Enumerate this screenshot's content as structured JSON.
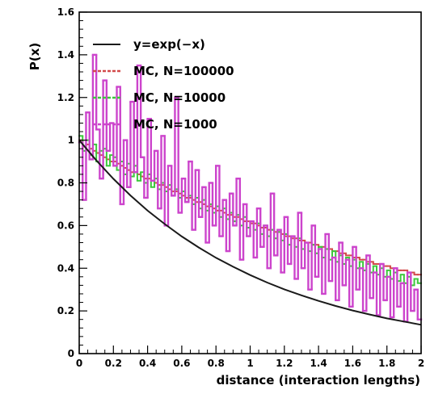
{
  "chart_data": {
    "type": "line",
    "title": "",
    "xlabel": "distance (interaction lengths)",
    "ylabel": "P(x)",
    "xlim": [
      0,
      2
    ],
    "ylim": [
      0,
      1.6
    ],
    "x_ticks": [
      0,
      0.2,
      0.4,
      0.6,
      0.8,
      1,
      1.2,
      1.4,
      1.6,
      1.8,
      2
    ],
    "x_tick_labels": [
      "0",
      "0.2",
      "0.4",
      "0.6",
      "0.8",
      "1",
      "1.2",
      "1.4",
      "1.6",
      "1.8",
      "2"
    ],
    "y_ticks": [
      0,
      0.2,
      0.4,
      0.6,
      0.8,
      1,
      1.2,
      1.4,
      1.6
    ],
    "y_tick_labels": [
      "0",
      "0.2",
      "0.4",
      "0.6",
      "0.8",
      "1",
      "1.2",
      "1.4",
      "1.6"
    ],
    "grid": false,
    "legend_position": "top-left",
    "bins": 100,
    "series": [
      {
        "name": "y=exp(−x)",
        "kind": "function",
        "color": "#1a1a1a",
        "x": [
          0,
          0.1,
          0.2,
          0.3,
          0.4,
          0.5,
          0.6,
          0.7,
          0.8,
          0.9,
          1.0,
          1.1,
          1.2,
          1.3,
          1.4,
          1.5,
          1.6,
          1.7,
          1.8,
          1.9,
          2.0
        ],
        "values": [
          1.0,
          0.905,
          0.819,
          0.741,
          0.67,
          0.607,
          0.549,
          0.497,
          0.449,
          0.407,
          0.368,
          0.333,
          0.301,
          0.273,
          0.247,
          0.223,
          0.202,
          0.183,
          0.165,
          0.15,
          0.135
        ]
      },
      {
        "name": "MC, N=100000",
        "kind": "histogram",
        "color": "#d24a4a",
        "values": [
          1.0,
          0.97,
          0.98,
          0.96,
          0.95,
          0.94,
          0.93,
          0.92,
          0.91,
          0.9,
          0.9,
          0.89,
          0.88,
          0.87,
          0.86,
          0.85,
          0.85,
          0.84,
          0.83,
          0.82,
          0.82,
          0.81,
          0.8,
          0.79,
          0.79,
          0.78,
          0.77,
          0.76,
          0.76,
          0.75,
          0.74,
          0.73,
          0.73,
          0.72,
          0.71,
          0.71,
          0.7,
          0.69,
          0.69,
          0.68,
          0.67,
          0.67,
          0.66,
          0.65,
          0.65,
          0.64,
          0.64,
          0.63,
          0.62,
          0.62,
          0.61,
          0.61,
          0.6,
          0.59,
          0.59,
          0.58,
          0.58,
          0.57,
          0.57,
          0.56,
          0.55,
          0.55,
          0.54,
          0.54,
          0.53,
          0.53,
          0.52,
          0.52,
          0.51,
          0.51,
          0.5,
          0.5,
          0.49,
          0.49,
          0.48,
          0.48,
          0.47,
          0.47,
          0.46,
          0.46,
          0.45,
          0.45,
          0.44,
          0.44,
          0.43,
          0.43,
          0.42,
          0.42,
          0.42,
          0.41,
          0.41,
          0.4,
          0.4,
          0.39,
          0.39,
          0.39,
          0.38,
          0.38,
          0.37,
          0.37
        ]
      },
      {
        "name": "MC, N=10000",
        "kind": "histogram",
        "color": "#3cc83c",
        "values": [
          1.02,
          0.95,
          1.0,
          0.93,
          0.98,
          0.9,
          0.95,
          0.96,
          0.88,
          0.93,
          0.92,
          0.86,
          0.9,
          0.84,
          0.89,
          0.83,
          0.88,
          0.81,
          0.85,
          0.8,
          0.84,
          0.78,
          0.82,
          0.77,
          0.8,
          0.76,
          0.79,
          0.74,
          0.77,
          0.73,
          0.76,
          0.71,
          0.74,
          0.7,
          0.73,
          0.68,
          0.72,
          0.67,
          0.7,
          0.66,
          0.69,
          0.64,
          0.68,
          0.63,
          0.66,
          0.62,
          0.65,
          0.6,
          0.64,
          0.59,
          0.62,
          0.58,
          0.61,
          0.56,
          0.6,
          0.55,
          0.58,
          0.54,
          0.57,
          0.53,
          0.56,
          0.51,
          0.55,
          0.5,
          0.54,
          0.49,
          0.52,
          0.48,
          0.51,
          0.47,
          0.5,
          0.45,
          0.49,
          0.44,
          0.48,
          0.43,
          0.46,
          0.42,
          0.45,
          0.41,
          0.44,
          0.4,
          0.43,
          0.39,
          0.42,
          0.38,
          0.41,
          0.37,
          0.4,
          0.36,
          0.39,
          0.35,
          0.38,
          0.34,
          0.37,
          0.33,
          0.36,
          0.32,
          0.35,
          0.33
        ]
      },
      {
        "name": "MC, N=1000",
        "kind": "histogram",
        "color": "#cc44cc",
        "values": [
          0.99,
          0.72,
          1.13,
          0.91,
          1.4,
          1.05,
          0.82,
          1.28,
          0.95,
          1.08,
          0.88,
          1.25,
          0.7,
          1.0,
          0.78,
          1.18,
          0.85,
          1.35,
          0.92,
          0.73,
          1.1,
          0.81,
          0.95,
          0.68,
          1.02,
          0.6,
          0.88,
          0.74,
          1.2,
          0.66,
          0.82,
          0.71,
          0.9,
          0.58,
          0.86,
          0.64,
          0.78,
          0.52,
          0.8,
          0.6,
          0.88,
          0.55,
          0.72,
          0.48,
          0.75,
          0.6,
          0.82,
          0.44,
          0.7,
          0.55,
          0.62,
          0.45,
          0.68,
          0.5,
          0.6,
          0.4,
          0.75,
          0.46,
          0.58,
          0.38,
          0.64,
          0.42,
          0.55,
          0.35,
          0.66,
          0.4,
          0.52,
          0.3,
          0.6,
          0.36,
          0.49,
          0.28,
          0.56,
          0.34,
          0.45,
          0.25,
          0.52,
          0.32,
          0.44,
          0.22,
          0.5,
          0.3,
          0.4,
          0.2,
          0.46,
          0.26,
          0.38,
          0.18,
          0.42,
          0.25,
          0.36,
          0.17,
          0.4,
          0.22,
          0.33,
          0.15,
          0.38,
          0.2,
          0.3,
          0.16
        ]
      }
    ]
  }
}
